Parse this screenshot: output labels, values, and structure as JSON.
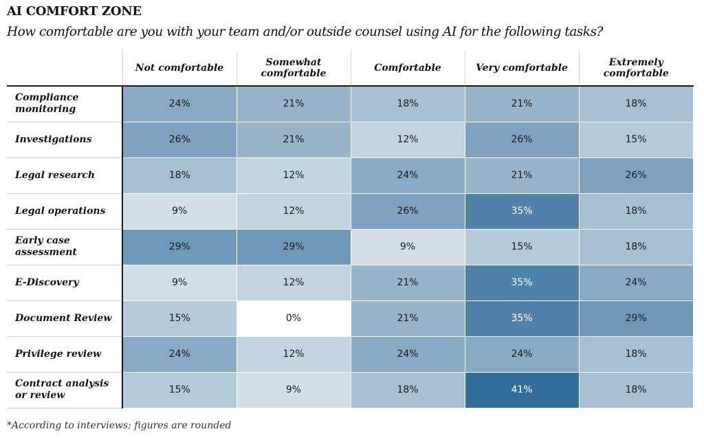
{
  "title": "AI COMFORT ZONE",
  "subtitle": "How comfortable are you with your team and/or outside counsel using AI for the following tasks?",
  "footnote": "*According to interviews; figures are rounded",
  "colors": {
    "low": "#ffffff",
    "high": "#336d9a",
    "text_dark": "#1a1a1a",
    "text_light": "#ffffff"
  },
  "chart_data": {
    "type": "heatmap",
    "title": "AI COMFORT ZONE",
    "columns": [
      "Not comfortable",
      "Somewhat comfortable",
      "Comfortable",
      "Very comfortable",
      "Extremely comfortable"
    ],
    "rows": [
      "Compliance monitoring",
      "Investigations",
      "Legal research",
      "Legal operations",
      "Early case assessment",
      "E-Discovery",
      "Document Review",
      "Privilege review",
      "Contract analysis or review"
    ],
    "values": [
      [
        24,
        21,
        18,
        21,
        18
      ],
      [
        26,
        21,
        12,
        26,
        15
      ],
      [
        18,
        12,
        24,
        21,
        26
      ],
      [
        9,
        12,
        26,
        35,
        18
      ],
      [
        29,
        29,
        9,
        15,
        18
      ],
      [
        9,
        12,
        21,
        35,
        24
      ],
      [
        15,
        0,
        21,
        35,
        29
      ],
      [
        24,
        12,
        24,
        24,
        18
      ],
      [
        15,
        9,
        18,
        41,
        18
      ]
    ],
    "value_suffix": "%",
    "value_range": [
      0,
      41
    ]
  }
}
